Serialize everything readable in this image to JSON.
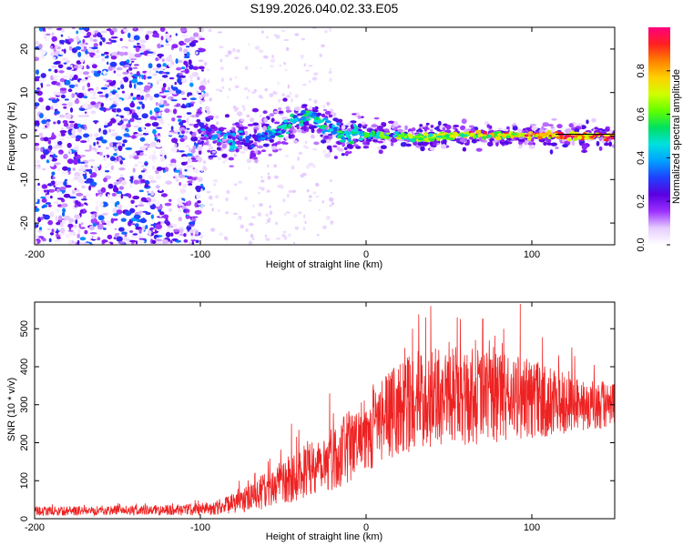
{
  "title": "S199.2026.040.02.33.E05",
  "chart_data": [
    {
      "type": "heatmap",
      "name": "spectrogram",
      "xlabel": "Height of straight line (km)",
      "ylabel": "Frequency (Hz)",
      "xlim": [
        -200,
        150
      ],
      "ylim": [
        -25,
        25
      ],
      "xticks": [
        -200,
        -100,
        0,
        100
      ],
      "yticks": [
        -20,
        -10,
        0,
        10,
        20
      ],
      "colorbar": {
        "label": "Normalized spectral amplitude",
        "range": [
          0,
          1
        ],
        "ticks": [
          0.0,
          0.2,
          0.4,
          0.6,
          0.8
        ],
        "colors": [
          "#ffffff",
          "#e6ccff",
          "#9b30ff",
          "#5a00e0",
          "#2040ff",
          "#00a0ff",
          "#00e0e0",
          "#00e060",
          "#60ff00",
          "#d0ff00",
          "#ffd000",
          "#ff8000",
          "#ff2020",
          "#ff0080"
        ]
      },
      "ridge": {
        "x": [
          -100,
          -95,
          -90,
          -85,
          -80,
          -75,
          -70,
          -65,
          -60,
          -55,
          -50,
          -45,
          -40,
          -35,
          -30,
          -25,
          -20,
          -15,
          -10,
          -5,
          0,
          10,
          20,
          30,
          40,
          50,
          60,
          70,
          80,
          90,
          100,
          110,
          120,
          130,
          140,
          150
        ],
        "y": [
          2,
          1,
          -1,
          0.5,
          -1.5,
          0.5,
          -2,
          -1,
          0,
          1,
          2,
          3,
          4,
          5,
          4,
          2,
          1,
          0.5,
          0,
          1,
          0.5,
          0,
          0.2,
          -0.5,
          -0.2,
          0,
          0.3,
          0,
          0.2,
          0.3,
          0,
          0.2,
          0,
          0,
          0,
          0
        ]
      }
    },
    {
      "type": "line",
      "name": "snr",
      "xlabel": "Height of straight line (km)",
      "ylabel": "SNR (10 * v/v)",
      "xlim": [
        -200,
        150
      ],
      "ylim": [
        0,
        570
      ],
      "xticks": [
        -200,
        -100,
        0,
        100
      ],
      "yticks": [
        0,
        100,
        200,
        300,
        400,
        500
      ],
      "color": "#ee2222",
      "series": [
        {
          "name": "SNR",
          "x": [
            -200,
            -180,
            -160,
            -140,
            -120,
            -100,
            -90,
            -80,
            -70,
            -60,
            -50,
            -40,
            -30,
            -20,
            -10,
            0,
            10,
            20,
            30,
            40,
            50,
            60,
            70,
            80,
            90,
            100,
            110,
            120,
            130,
            140,
            150
          ],
          "y": [
            20,
            20,
            22,
            22,
            22,
            25,
            30,
            40,
            55,
            75,
            95,
            120,
            145,
            160,
            190,
            225,
            260,
            290,
            310,
            320,
            325,
            320,
            320,
            315,
            320,
            315,
            305,
            310,
            300,
            300,
            290
          ],
          "spread": [
            12,
            12,
            13,
            13,
            14,
            16,
            20,
            28,
            36,
            50,
            60,
            70,
            80,
            85,
            95,
            105,
            115,
            125,
            130,
            130,
            130,
            128,
            125,
            120,
            115,
            105,
            95,
            85,
            75,
            70,
            65
          ],
          "spikes": [
            [
              39,
              560
            ],
            [
              93,
              565
            ],
            [
              36,
              530
            ],
            [
              28,
              500
            ],
            [
              55,
              530
            ],
            [
              -45,
              250
            ],
            [
              -22,
              330
            ],
            [
              83,
              500
            ],
            [
              66,
              470
            ]
          ]
        }
      ]
    }
  ]
}
